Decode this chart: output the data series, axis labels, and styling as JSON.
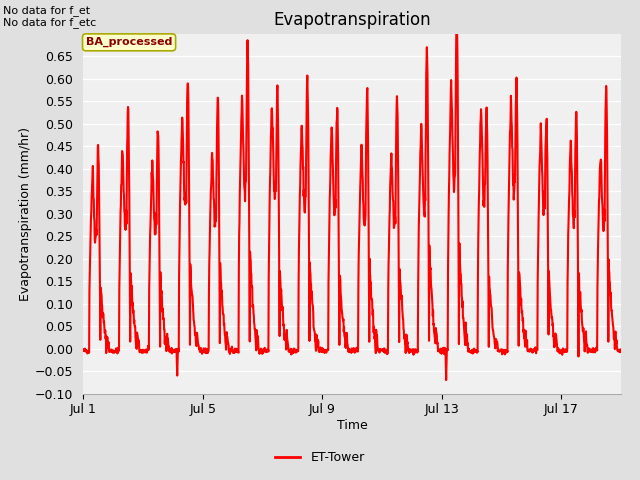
{
  "title": "Evapotranspiration",
  "xlabel": "Time",
  "ylabel": "Evapotranspiration (mm/hr)",
  "ylim": [
    -0.1,
    0.7
  ],
  "yticks": [
    -0.1,
    -0.05,
    0.0,
    0.05,
    0.1,
    0.15,
    0.2,
    0.25,
    0.3,
    0.35,
    0.4,
    0.45,
    0.5,
    0.55,
    0.6,
    0.65
  ],
  "xtick_positions": [
    0,
    4,
    8,
    12,
    16
  ],
  "xtick_labels": [
    "Jul 1",
    "Jul 5",
    "Jul 9",
    "Jul 13",
    "Jul 17"
  ],
  "line_color": "red",
  "line_width": 1.5,
  "legend_label": "ET-Tower",
  "top_left_text": "No data for f_et\nNo data for f_etc",
  "box_label": "BA_processed",
  "box_bg_color": "#FFFFCC",
  "box_border_color": "#AAAA00",
  "fig_bg_color": "#E0E0E0",
  "plot_bg_color": "#F0F0F0",
  "grid_color": "#FFFFFF",
  "title_fontsize": 12,
  "axis_label_fontsize": 9,
  "tick_fontsize": 9,
  "num_days": 19,
  "daily_peaks": [
    0.4,
    0.45,
    0.42,
    0.52,
    0.44,
    0.57,
    0.55,
    0.51,
    0.5,
    0.45,
    0.44,
    0.5,
    0.6,
    0.54,
    0.56,
    0.5,
    0.47,
    0.44,
    0.02
  ],
  "daily_peaks2": [
    0.32,
    0.39,
    0.35,
    0.43,
    0.42,
    0.5,
    0.39,
    0.44,
    0.37,
    0.43,
    0.41,
    0.5,
    0.54,
    0.35,
    0.4,
    0.35,
    0.37,
    0.44,
    0.0
  ],
  "daily_mins": [
    -0.01,
    -0.02,
    -0.01,
    -0.06,
    -0.02,
    -0.01,
    -0.02,
    -0.01,
    -0.01,
    -0.01,
    -0.01,
    -0.02,
    -0.07,
    -0.02,
    -0.01,
    -0.01,
    -0.01,
    -0.01,
    -0.01
  ]
}
